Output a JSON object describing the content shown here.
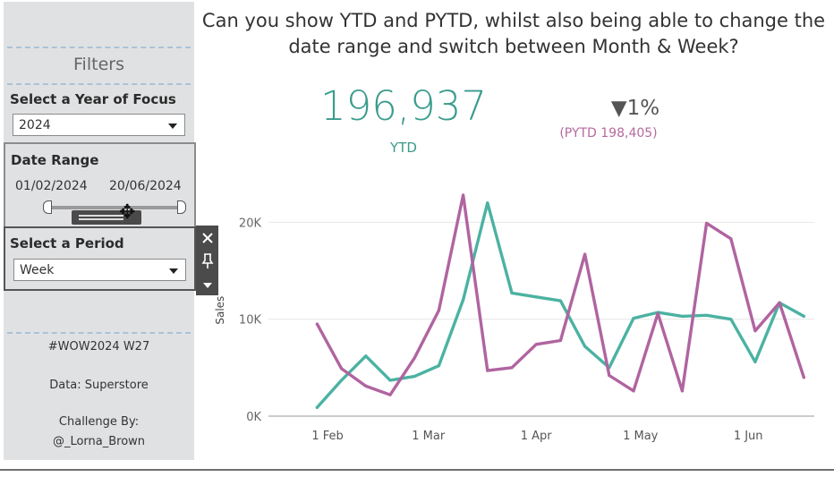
{
  "sidebar": {
    "title": "Filters",
    "year_label": "Select a Year of Focus",
    "year_value": "2024",
    "date_range_label": "Date Range",
    "date_start": "01/02/2024",
    "date_end": "20/06/2024",
    "period_label": "Select a Period",
    "period_value": "Week",
    "hashtag": "#WOW2024 W27",
    "data_source": "Data: Superstore",
    "challenge_by_label": "Challenge By:",
    "challenge_by_name": "@_Lorna_Brown"
  },
  "toolbar": {
    "close_icon": "close-icon",
    "pin_icon": "pin-icon",
    "more_icon": "caret-down-icon"
  },
  "header": {
    "title_line1": "Can you show YTD and PYTD, whilst also being able to change the",
    "title_line2": "date range and switch between Month & Week?"
  },
  "kpi": {
    "ytd_value": "196,937",
    "ytd_label": "YTD",
    "change_arrow": "▼",
    "change_value": "1%",
    "pytd_label": "(PYTD 198,405)"
  },
  "colors": {
    "ytd": "#4bb2a2",
    "pytd": "#b064a0",
    "kpi_ytd": "#3a9b8d",
    "sidebar_bg": "#e0e1e3"
  },
  "chart_data": {
    "type": "line",
    "ylabel": "Sales",
    "ylim": [
      0,
      24000
    ],
    "yticks": [
      0,
      10000,
      20000
    ],
    "ytick_labels": [
      "0K",
      "10K",
      "20K"
    ],
    "xtick_labels": [
      "1 Feb",
      "1 Mar",
      "1 Apr",
      "1 May",
      "1 Jun"
    ],
    "xtick_dates": [
      "2024-02-01",
      "2024-03-01",
      "2024-04-01",
      "2024-05-01",
      "2024-06-01"
    ],
    "xlim": [
      "2024-01-15",
      "2024-06-20"
    ],
    "grid": true,
    "series": [
      {
        "key": "ytd",
        "x": [
          "2024-01-29",
          "2024-02-05",
          "2024-02-12",
          "2024-02-19",
          "2024-02-26",
          "2024-03-04",
          "2024-03-11",
          "2024-03-18",
          "2024-03-25",
          "2024-04-01",
          "2024-04-08",
          "2024-04-15",
          "2024-04-22",
          "2024-04-29",
          "2024-05-06",
          "2024-05-13",
          "2024-05-20",
          "2024-05-27",
          "2024-06-03",
          "2024-06-10",
          "2024-06-17"
        ],
        "values": [
          900,
          3700,
          6200,
          3700,
          4100,
          5200,
          12000,
          22000,
          12700,
          12300,
          11900,
          7200,
          5000,
          10100,
          10700,
          10300,
          10400,
          10000,
          5600,
          11700,
          10300
        ]
      },
      {
        "key": "pytd",
        "x": [
          "2024-01-29",
          "2024-02-05",
          "2024-02-12",
          "2024-02-19",
          "2024-02-26",
          "2024-03-04",
          "2024-03-11",
          "2024-03-18",
          "2024-03-25",
          "2024-04-01",
          "2024-04-08",
          "2024-04-15",
          "2024-04-22",
          "2024-04-29",
          "2024-05-06",
          "2024-05-13",
          "2024-05-20",
          "2024-05-27",
          "2024-06-03",
          "2024-06-10",
          "2024-06-17"
        ],
        "values": [
          9500,
          4900,
          3100,
          2200,
          6000,
          10900,
          22800,
          4700,
          5000,
          7400,
          7800,
          16700,
          4200,
          2600,
          10600,
          2600,
          19900,
          18300,
          8800,
          11700,
          4000
        ]
      }
    ]
  }
}
